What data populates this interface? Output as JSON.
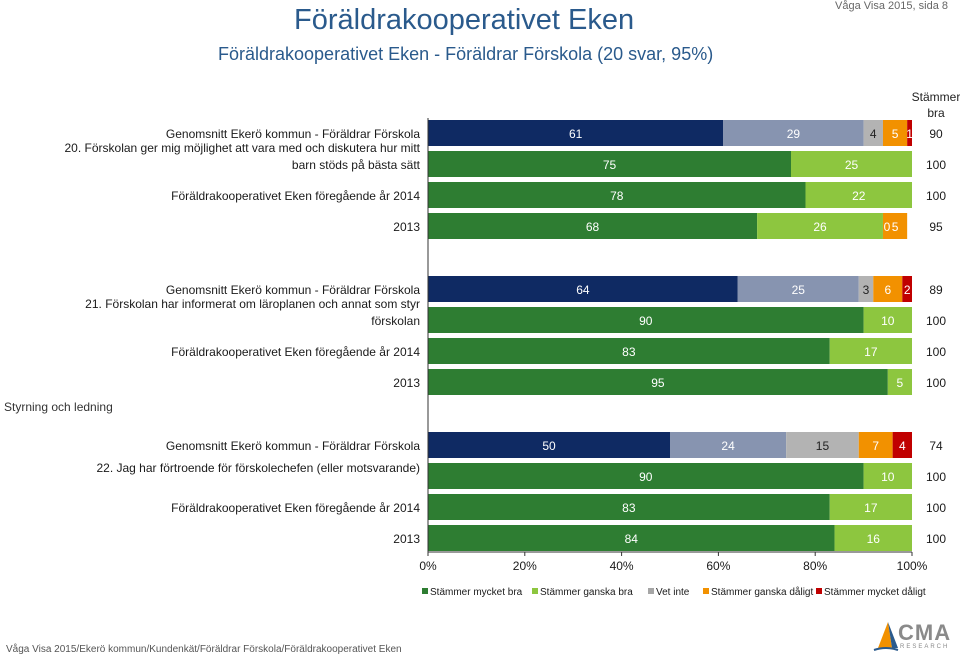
{
  "header": {
    "title": "Föräldrakooperativet Eken",
    "subtitle": "Föräldrakooperativet Eken - Föräldrar Förskola (20 svar, 95%)",
    "page_ref": "Våga Visa 2015, sida 8"
  },
  "column_header": "Stämmer bra",
  "section_label": "Styrning och ledning",
  "footer": "Våga Visa 2015/Ekerö kommun/Kundenkät/Föräldrar Förskola/Föräldrakooperativet Eken",
  "logo": {
    "text": "CMA",
    "subtext": "RESEARCH",
    "icon": "sail-logo-icon"
  },
  "colors": {
    "Stämmer mycket bra (kommun)": "#0f2a63",
    "Stämmer mycket bra": "#2e7d32",
    "Stämmer ganska bra": "#8dc63f",
    "Vet inte": "#a6a6a6",
    "Stämmer ganska dåligt": "#f29100",
    "Stämmer mycket dåligt": "#c00000",
    "Stämmer ganska bra (kommun)": "#8794b0",
    "Vet inte (kommun)": "#b3b3b3"
  },
  "chart_data": {
    "type": "bar",
    "orientation": "horizontal-stacked-100",
    "xlim": [
      0,
      100
    ],
    "x_ticks": [
      "0%",
      "20%",
      "40%",
      "60%",
      "80%",
      "100%"
    ],
    "legend": {
      "placement": "bottom",
      "entries": [
        "Stämmer mycket bra",
        "Stämmer ganska bra",
        "Vet inte",
        "Stämmer ganska dåligt",
        "Stämmer mycket dåligt"
      ]
    },
    "groups": [
      {
        "question": "20. Förskolan ger mig möjlighet att vara med och diskutera hur mitt barn stöds på bästa sätt",
        "bars": [
          {
            "label": "Genomsnitt Ekerö kommun - Föräldrar Förskola",
            "kommun": true,
            "values": [
              61,
              29,
              4,
              5,
              1
            ],
            "shown": [
              "61",
              "29",
              "4",
              "5",
              "1"
            ],
            "total": "90"
          },
          {
            "label": "",
            "kommun": false,
            "values": [
              75,
              25,
              0,
              0,
              0
            ],
            "shown": [
              "75",
              "25",
              "0",
              "",
              ""
            ],
            "total": "100"
          },
          {
            "label": "Föräldrakooperativet Eken föregående år 2014",
            "kommun": false,
            "values": [
              78,
              22,
              0,
              0,
              0
            ],
            "shown": [
              "78",
              "22",
              "0",
              "",
              ""
            ],
            "total": "100"
          },
          {
            "label": "2013",
            "kommun": false,
            "values": [
              68,
              26,
              0,
              5,
              0
            ],
            "shown": [
              "68",
              "26",
              "0",
              "5",
              "0"
            ],
            "total": "95"
          }
        ]
      },
      {
        "question": "21. Förskolan har informerat om läroplanen och annat som styr förskolan",
        "bars": [
          {
            "label": "Genomsnitt Ekerö kommun - Föräldrar Förskola",
            "kommun": true,
            "values": [
              64,
              25,
              3,
              6,
              2
            ],
            "shown": [
              "64",
              "25",
              "3",
              "6",
              "2"
            ],
            "total": "89"
          },
          {
            "label": "",
            "kommun": false,
            "values": [
              90,
              10,
              0,
              0,
              0
            ],
            "shown": [
              "90",
              "10",
              "0",
              "",
              ""
            ],
            "total": "100"
          },
          {
            "label": "Föräldrakooperativet Eken föregående år 2014",
            "kommun": false,
            "values": [
              83,
              17,
              0,
              0,
              0
            ],
            "shown": [
              "83",
              "17",
              "0",
              "",
              ""
            ],
            "total": "100"
          },
          {
            "label": "2013",
            "kommun": false,
            "values": [
              95,
              5,
              0,
              0,
              0
            ],
            "shown": [
              "95",
              "5",
              "0",
              "",
              ""
            ],
            "total": "100"
          }
        ]
      },
      {
        "question": "22. Jag har förtroende för förskolechefen (eller motsvarande)",
        "bars": [
          {
            "label": "Genomsnitt Ekerö kommun - Föräldrar Förskola",
            "kommun": true,
            "values": [
              50,
              24,
              15,
              7,
              4
            ],
            "shown": [
              "50",
              "24",
              "15",
              "7",
              "4"
            ],
            "total": "74"
          },
          {
            "label": "",
            "kommun": false,
            "values": [
              90,
              10,
              0,
              0,
              0
            ],
            "shown": [
              "90",
              "10",
              "0",
              "",
              ""
            ],
            "total": "100"
          },
          {
            "label": "Föräldrakooperativet Eken föregående år 2014",
            "kommun": false,
            "values": [
              83,
              17,
              0,
              0,
              0
            ],
            "shown": [
              "83",
              "17",
              "0",
              "",
              ""
            ],
            "total": "100"
          },
          {
            "label": "2013",
            "kommun": false,
            "values": [
              84,
              16,
              0,
              0,
              0
            ],
            "shown": [
              "84",
              "16",
              "0",
              "",
              ""
            ],
            "total": "100"
          }
        ]
      }
    ]
  }
}
